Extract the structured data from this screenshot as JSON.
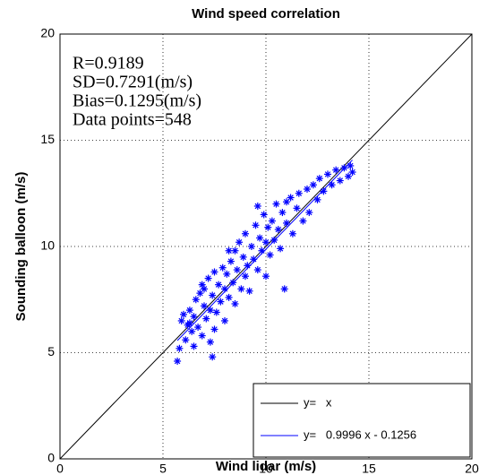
{
  "chart_data": {
    "type": "scatter",
    "title": "Wind speed correlation",
    "x_label": "Wind lidar (m/s)",
    "y_label": "Sounding balloon (m/s)",
    "xlim": [
      0,
      20
    ],
    "ylim": [
      0,
      20
    ],
    "xticks": [
      0,
      5,
      10,
      15,
      20
    ],
    "yticks": [
      0,
      5,
      10,
      15,
      20
    ],
    "grid": true,
    "annotations": [
      "R=0.9189",
      "SD=0.7291(m/s)",
      "Bias=0.1295(m/s)",
      "Data points=548"
    ],
    "legend_position": "lower right",
    "scatter": {
      "color": "#0000ff",
      "x": [
        5.7,
        5.8,
        5.9,
        6.0,
        6.1,
        6.2,
        6.3,
        6.4,
        6.5,
        6.5,
        6.6,
        6.7,
        6.8,
        6.9,
        7.0,
        7.0,
        7.1,
        7.2,
        7.3,
        7.4,
        7.4,
        7.5,
        7.6,
        7.7,
        7.8,
        7.9,
        8.0,
        8.0,
        8.1,
        8.2,
        8.3,
        8.4,
        8.5,
        8.5,
        8.6,
        8.7,
        8.8,
        8.9,
        9.0,
        9.0,
        9.1,
        9.2,
        9.3,
        9.4,
        9.5,
        9.6,
        9.7,
        9.8,
        9.9,
        10.0,
        10.0,
        10.1,
        10.2,
        10.3,
        10.4,
        10.5,
        10.6,
        10.7,
        10.8,
        10.9,
        11.0,
        11.2,
        11.3,
        11.5,
        11.6,
        11.8,
        12.0,
        12.1,
        12.3,
        12.5,
        12.6,
        12.8,
        13.0,
        13.2,
        13.4,
        13.6,
        13.8,
        14.0,
        14.1,
        14.2,
        6.3,
        7.5,
        8.2,
        9.6,
        11.0,
        7.3,
        6.9
      ],
      "y": [
        4.6,
        5.2,
        6.5,
        6.8,
        5.6,
        6.3,
        7.0,
        6.0,
        5.3,
        6.7,
        7.5,
        6.2,
        7.8,
        5.8,
        7.2,
        8.0,
        6.6,
        8.5,
        7.0,
        4.8,
        7.7,
        8.8,
        6.9,
        8.2,
        7.4,
        9.0,
        8.0,
        6.5,
        8.7,
        7.6,
        9.3,
        8.3,
        7.3,
        9.8,
        8.9,
        10.2,
        8.0,
        9.5,
        8.6,
        10.6,
        9.1,
        7.9,
        10.0,
        9.4,
        11.0,
        8.9,
        10.4,
        9.8,
        11.5,
        10.2,
        8.6,
        10.9,
        9.6,
        11.2,
        10.3,
        12.0,
        10.8,
        9.9,
        11.6,
        8.0,
        11.1,
        12.3,
        10.6,
        11.8,
        12.5,
        11.2,
        12.7,
        11.6,
        12.9,
        12.2,
        13.2,
        12.6,
        13.4,
        12.9,
        13.6,
        13.1,
        13.7,
        13.3,
        13.8,
        13.5,
        6.4,
        6.1,
        9.8,
        11.9,
        12.1,
        5.5,
        8.2
      ]
    },
    "series": [
      {
        "name": "y=   x",
        "color": "#000000",
        "x": [
          0,
          20
        ],
        "y": [
          0,
          20
        ]
      },
      {
        "name": "y=   0.9996 x - 0.1256",
        "color": "#0000ff",
        "x": [
          5.7,
          14.2
        ],
        "y": [
          5.57,
          14.07
        ]
      }
    ]
  }
}
